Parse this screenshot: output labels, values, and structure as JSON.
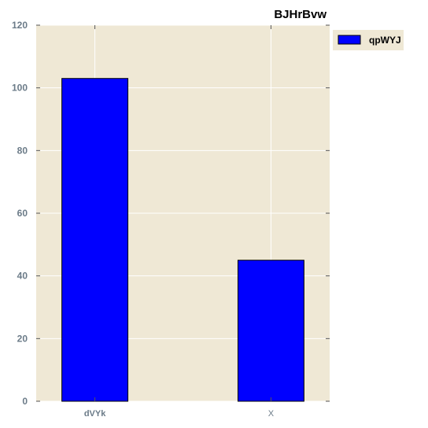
{
  "chart_data": {
    "type": "bar",
    "title": "BJHrBvw",
    "xlabel": "",
    "ylabel": "",
    "categories": [
      "dVYk",
      "X"
    ],
    "series": [
      {
        "name": "qpWYJ",
        "values": [
          103,
          45
        ],
        "color": "#0000ff"
      }
    ],
    "ylim": [
      0,
      120
    ],
    "yticks": [
      0,
      20,
      40,
      60,
      80,
      100,
      120
    ],
    "grid": true,
    "legend_position": "outside-top-right",
    "background_color": "#efe8d5",
    "grid_color": "#ffffff",
    "bar_edge_color": "#000000"
  }
}
